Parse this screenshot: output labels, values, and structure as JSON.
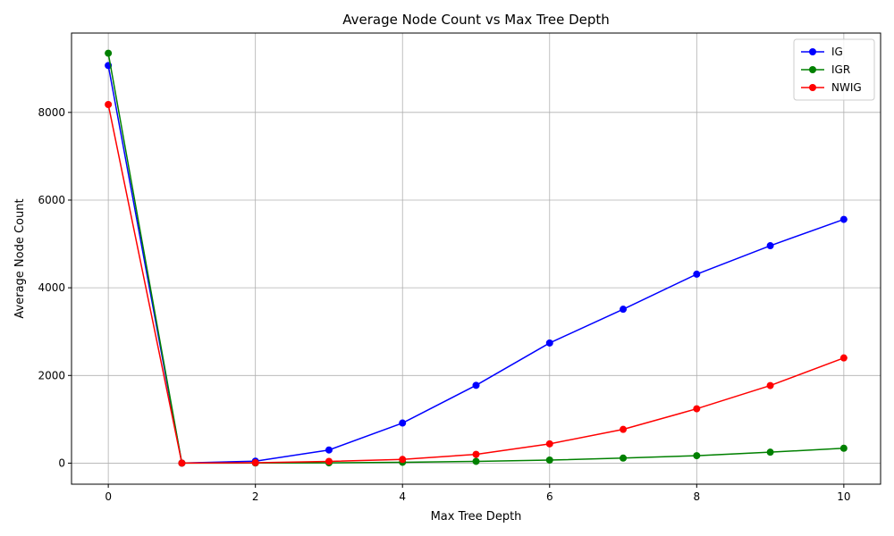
{
  "chart_data": {
    "type": "line",
    "title": "Average Node Count vs Max Tree Depth",
    "xlabel": "Max Tree Depth",
    "ylabel": "Average Node Count",
    "x": [
      0,
      1,
      2,
      3,
      4,
      5,
      6,
      7,
      8,
      9,
      10
    ],
    "xlim": [
      -0.5,
      10.5
    ],
    "ylim": [
      -480,
      9810
    ],
    "xticks": [
      0,
      2,
      4,
      6,
      8,
      10
    ],
    "yticks": [
      0,
      2000,
      4000,
      6000,
      8000
    ],
    "grid": true,
    "legend_position": "top-right",
    "series": [
      {
        "name": "IG",
        "color": "#0000ff",
        "values": [
          9070,
          1,
          45,
          300,
          915,
          1775,
          2740,
          3510,
          4310,
          4960,
          5560
        ]
      },
      {
        "name": "IGR",
        "color": "#008000",
        "values": [
          9350,
          1,
          3,
          7,
          20,
          40,
          70,
          115,
          170,
          250,
          340
        ]
      },
      {
        "name": "NWIG",
        "color": "#ff0000",
        "values": [
          8180,
          1,
          10,
          40,
          85,
          200,
          440,
          770,
          1240,
          1770,
          2400
        ]
      }
    ]
  }
}
